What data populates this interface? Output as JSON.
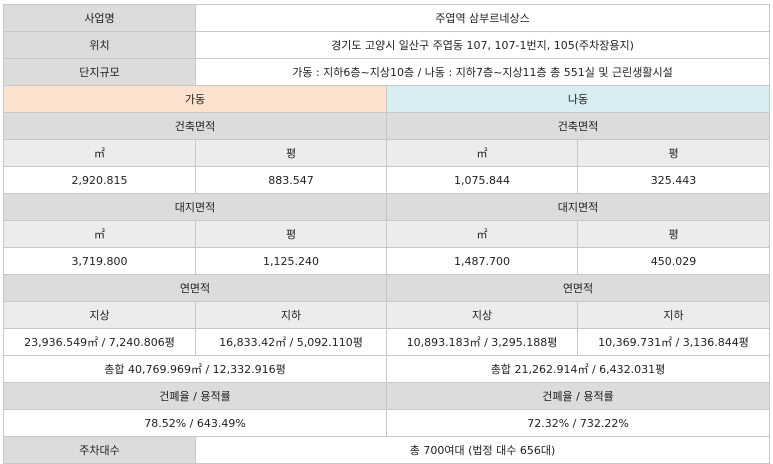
{
  "rows": {
    "project_name": {
      "label": "사업명",
      "value": "주엽역 삼부르네상스"
    },
    "location": {
      "label": "위치",
      "value": "경기도 고양시 일산구 주엽동 107, 107-1번지, 105(주차장용지)"
    },
    "scale": {
      "label": "단지규모",
      "value": "가동 : 지하6층~지상10층 / 나동 : 지하7층~지상11층 총 551실 및 근린생활시설"
    }
  },
  "buildings": {
    "ga": "가동",
    "na": "나동"
  },
  "sections": {
    "building_area": "건축면적",
    "land_area": "대지면적",
    "total_floor_area": "연면적",
    "ratio": "건폐율 / 용적률"
  },
  "units": {
    "sqm": "㎡",
    "pyeong": "평",
    "above": "지상",
    "below": "지하"
  },
  "ga": {
    "building_area_sqm": "2,920.815",
    "building_area_py": "883.547",
    "land_area_sqm": "3,719.800",
    "land_area_py": "1,125.240",
    "floor_above": "23,936.549㎡ / 7,240.806평",
    "floor_below": "16,833.42㎡ / 5,092.110평",
    "floor_total": "총합 40,769.969㎡ / 12,332.916평",
    "ratio": "78.52% / 643.49%"
  },
  "na": {
    "building_area_sqm": "1,075.844",
    "building_area_py": "325.443",
    "land_area_sqm": "1,487.700",
    "land_area_py": "450.029",
    "floor_above": "10,893.183㎡ / 3,295.188평",
    "floor_below": "10,369.731㎡ / 3,136.844평",
    "floor_total": "총합 21,262.914㎡ / 6,432.031평",
    "ratio": "72.32% / 732.22%"
  },
  "parking": {
    "label": "주차대수",
    "value": "총 700여대 (법정 대수 656대)"
  }
}
